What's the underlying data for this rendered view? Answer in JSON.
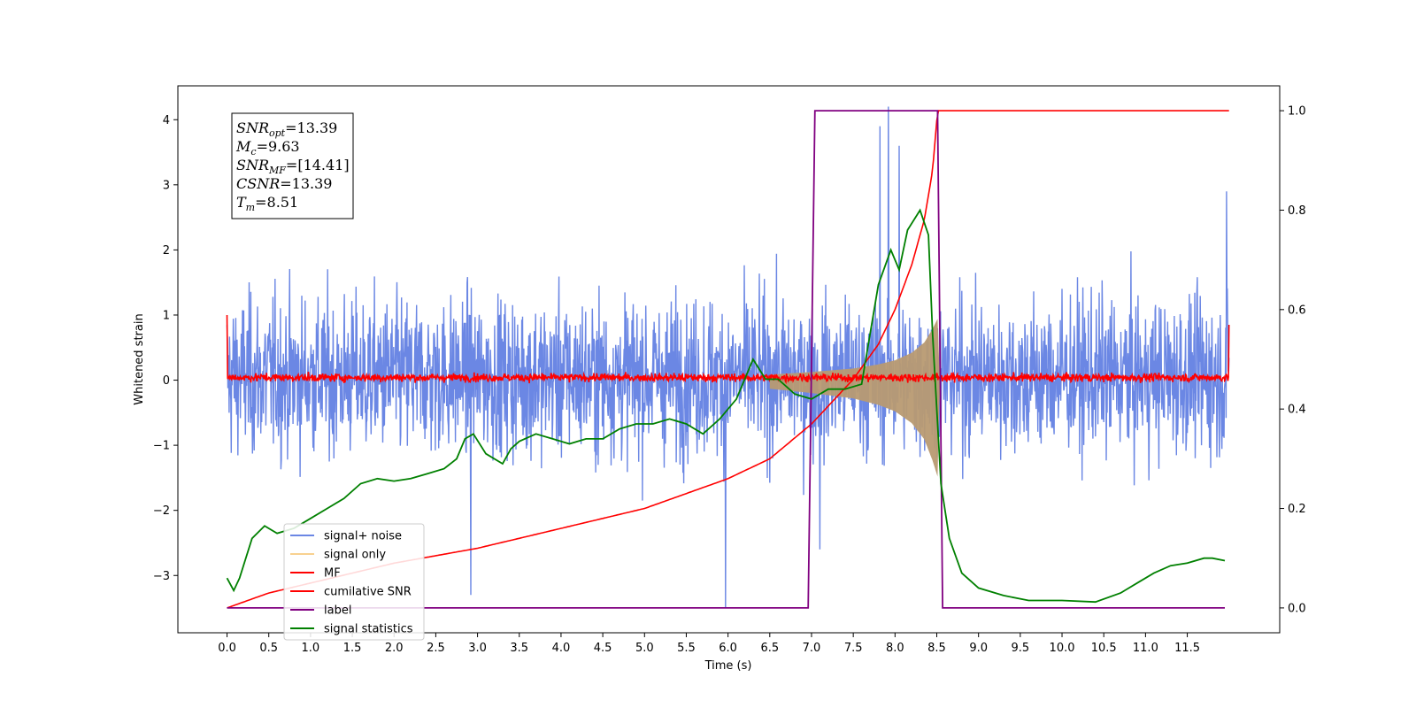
{
  "chart_data": {
    "type": "line",
    "title": "",
    "xlabel": "Time (s)",
    "ylabel": "Whitened strain",
    "xlim": [
      -0.5886,
      12.607
    ],
    "ylim": [
      -3.88,
      4.52
    ],
    "y2lim": [
      -0.05,
      1.05
    ],
    "xticks": [
      0.0,
      0.5,
      1.0,
      1.5,
      2.0,
      2.5,
      3.0,
      3.5,
      4.0,
      4.5,
      5.0,
      5.5,
      6.0,
      6.5,
      7.0,
      7.5,
      8.0,
      8.5,
      9.0,
      9.5,
      10.0,
      10.5,
      11.0,
      11.5
    ],
    "xtick_labels": [
      "0.0",
      "0.5",
      "1.0",
      "1.5",
      "2.0",
      "2.5",
      "3.0",
      "3.5",
      "4.0",
      "4.5",
      "5.0",
      "5.5",
      "6.0",
      "6.5",
      "7.0",
      "7.5",
      "8.0",
      "8.5",
      "9.0",
      "9.5",
      "10.0",
      "10.5",
      "11.0",
      "11.5"
    ],
    "yticks": [
      -3,
      -2,
      -1,
      0,
      1,
      2,
      3,
      4
    ],
    "ytick_labels": [
      "−3",
      "−2",
      "−1",
      "0",
      "1",
      "2",
      "3",
      "4"
    ],
    "y2ticks": [
      0.0,
      0.2,
      0.4,
      0.6,
      0.8,
      1.0
    ],
    "y2tick_labels": [
      "0.0",
      "0.2",
      "0.4",
      "0.6",
      "0.8",
      "1.0"
    ],
    "grid": false,
    "legend_position": "lower-left",
    "annotation": [
      {
        "sym": "SNR",
        "sub": "opt",
        "value": "=13.39"
      },
      {
        "sym": "M",
        "sub": "c",
        "value": "=9.63"
      },
      {
        "sym": "SNR",
        "sub": "MF",
        "value": "=[14.41]"
      },
      {
        "sym": "CSNR",
        "sub": "",
        "value": "=13.39"
      },
      {
        "sym": "T",
        "sub": "m",
        "value": "=8.51"
      }
    ],
    "series": [
      {
        "name": "signal+ noise",
        "color": "#6b87e4",
        "axis": "left",
        "noise": true,
        "t_start": 0.0,
        "t_end": 12.0,
        "noise_band": [
          -1.9,
          2.0
        ],
        "spikes": [
          [
            5.97,
            -3.5
          ],
          [
            7.92,
            4.2
          ],
          [
            7.82,
            3.9
          ],
          [
            2.92,
            -3.3
          ],
          [
            11.97,
            2.9
          ],
          [
            7.1,
            -2.6
          ],
          [
            8.05,
            3.6
          ]
        ]
      },
      {
        "name": "signal only",
        "color": "#f5c26b",
        "axis": "left",
        "chirp": true,
        "x": [
          6.5,
          7.0,
          7.5,
          7.8,
          8.0,
          8.2,
          8.35,
          8.45,
          8.51
        ],
        "envelope": [
          0.08,
          0.12,
          0.17,
          0.23,
          0.29,
          0.4,
          0.55,
          0.75,
          0.9
        ],
        "after": {
          "x": [
            8.51,
            8.53,
            8.55
          ],
          "envelope": [
            0.5,
            0.2,
            0.0
          ]
        }
      },
      {
        "name": "MF",
        "color": "#ff0000",
        "axis": "left",
        "noise": true,
        "t_start": 0.0,
        "t_end": 12.0,
        "noise_band": [
          -0.07,
          0.15
        ],
        "endpoints": [
          [
            0.0,
            1.0
          ],
          [
            12.0,
            0.85
          ]
        ]
      },
      {
        "name": "cumilative SNR",
        "color": "#ff0000",
        "axis": "right",
        "x": [
          0.0,
          0.5,
          1.0,
          2.0,
          3.0,
          4.0,
          5.0,
          5.5,
          6.0,
          6.5,
          7.0,
          7.5,
          7.8,
          8.0,
          8.2,
          8.35,
          8.45,
          8.51,
          12.0
        ],
        "values": [
          0.0,
          0.03,
          0.05,
          0.09,
          0.12,
          0.16,
          0.2,
          0.23,
          0.26,
          0.3,
          0.37,
          0.46,
          0.53,
          0.6,
          0.69,
          0.78,
          0.88,
          1.0,
          1.0
        ]
      },
      {
        "name": "label",
        "color": "#800080",
        "axis": "right",
        "x": [
          0.0,
          6.96,
          7.04,
          8.51,
          8.57,
          11.95
        ],
        "values": [
          0.0,
          0.0,
          1.0,
          1.0,
          0.0,
          0.0
        ]
      },
      {
        "name": "signal statistics",
        "color": "#008000",
        "axis": "right",
        "x": [
          0.0,
          0.08,
          0.15,
          0.3,
          0.45,
          0.6,
          0.8,
          1.0,
          1.2,
          1.4,
          1.6,
          1.8,
          2.0,
          2.2,
          2.4,
          2.6,
          2.75,
          2.85,
          2.95,
          3.1,
          3.3,
          3.4,
          3.5,
          3.7,
          3.9,
          4.1,
          4.3,
          4.5,
          4.7,
          4.9,
          5.1,
          5.3,
          5.5,
          5.7,
          5.9,
          6.1,
          6.3,
          6.45,
          6.6,
          6.8,
          7.0,
          7.2,
          7.4,
          7.6,
          7.8,
          7.95,
          8.05,
          8.15,
          8.3,
          8.4,
          8.45,
          8.55,
          8.65,
          8.8,
          9.0,
          9.3,
          9.6,
          10.0,
          10.4,
          10.7,
          10.9,
          11.1,
          11.3,
          11.5,
          11.7,
          11.8,
          11.95
        ],
        "values": [
          0.06,
          0.035,
          0.06,
          0.14,
          0.165,
          0.15,
          0.16,
          0.18,
          0.2,
          0.22,
          0.25,
          0.26,
          0.255,
          0.26,
          0.27,
          0.28,
          0.3,
          0.34,
          0.35,
          0.31,
          0.29,
          0.32,
          0.335,
          0.35,
          0.34,
          0.33,
          0.34,
          0.34,
          0.36,
          0.37,
          0.37,
          0.38,
          0.37,
          0.35,
          0.38,
          0.42,
          0.5,
          0.46,
          0.46,
          0.43,
          0.42,
          0.44,
          0.44,
          0.45,
          0.65,
          0.72,
          0.68,
          0.76,
          0.8,
          0.75,
          0.55,
          0.25,
          0.14,
          0.07,
          0.04,
          0.025,
          0.015,
          0.015,
          0.012,
          0.03,
          0.05,
          0.07,
          0.085,
          0.09,
          0.1,
          0.1,
          0.095
        ]
      }
    ]
  }
}
